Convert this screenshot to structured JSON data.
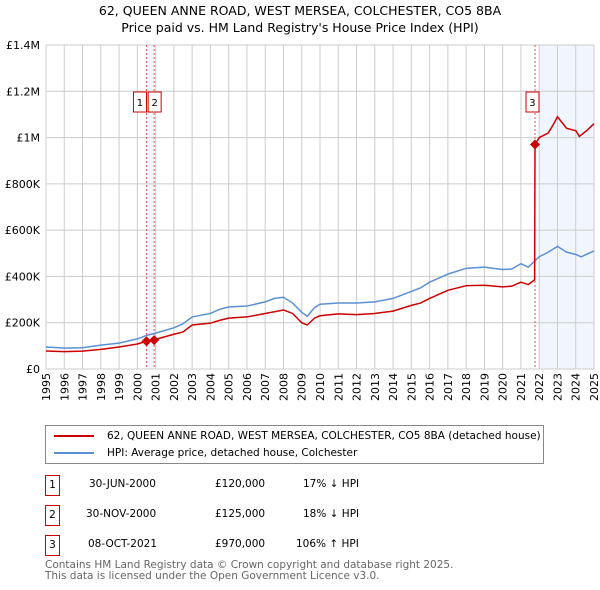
{
  "title": "62, QUEEN ANNE ROAD, WEST MERSEA, COLCHESTER, CO5 8BA",
  "subtitle": "Price paid vs. HM Land Registry's House Price Index (HPI)",
  "chart_data": {
    "type": "line",
    "xlim": [
      1995,
      2025
    ],
    "ylim": [
      0,
      1400000
    ],
    "y_ticks": [
      {
        "v": 0,
        "label": "£0"
      },
      {
        "v": 200000,
        "label": "£200K"
      },
      {
        "v": 400000,
        "label": "£400K"
      },
      {
        "v": 600000,
        "label": "£600K"
      },
      {
        "v": 800000,
        "label": "£800K"
      },
      {
        "v": 1000000,
        "label": "£1M"
      },
      {
        "v": 1200000,
        "label": "£1.2M"
      },
      {
        "v": 1400000,
        "label": "£1.4M"
      }
    ],
    "x_ticks": [
      "1995",
      "1996",
      "1997",
      "1998",
      "1999",
      "2000",
      "2001",
      "2002",
      "2003",
      "2004",
      "2005",
      "2006",
      "2007",
      "2008",
      "2009",
      "2010",
      "2011",
      "2012",
      "2013",
      "2014",
      "2015",
      "2016",
      "2017",
      "2018",
      "2019",
      "2020",
      "2021",
      "2022",
      "2023",
      "2024",
      "2025"
    ],
    "grid": true,
    "shaded_ranges": [
      [
        2000.5,
        2000.92
      ],
      [
        2022,
        2025
      ]
    ],
    "series": [
      {
        "name": "62, QUEEN ANNE ROAD, WEST MERSEA, COLCHESTER, CO5 8BA (detached house)",
        "color": "#cc0000",
        "x": [
          1995,
          1996,
          1997,
          1998,
          1999,
          2000,
          2000.5,
          2000.92,
          2001,
          2002,
          2002.5,
          2003,
          2004,
          2004.5,
          2005,
          2006,
          2007,
          2008,
          2008.5,
          2009,
          2009.3,
          2009.7,
          2010,
          2011,
          2012,
          2013,
          2014,
          2015,
          2015.5,
          2016,
          2017,
          2018,
          2019,
          2020,
          2020.5,
          2021,
          2021.4,
          2021.75,
          2021.77,
          2022,
          2022.5,
          2022.8,
          2023,
          2023.5,
          2024,
          2024.2,
          2024.6,
          2025
        ],
        "y": [
          78000,
          75000,
          77000,
          85000,
          95000,
          108000,
          120000,
          125000,
          128000,
          150000,
          160000,
          190000,
          198000,
          210000,
          220000,
          225000,
          240000,
          255000,
          240000,
          200000,
          190000,
          220000,
          230000,
          238000,
          235000,
          240000,
          250000,
          275000,
          285000,
          305000,
          340000,
          360000,
          362000,
          355000,
          358000,
          375000,
          365000,
          385000,
          970000,
          1000000,
          1020000,
          1060000,
          1090000,
          1040000,
          1030000,
          1005000,
          1030000,
          1060000
        ]
      },
      {
        "name": "HPI: Average price, detached house, Colchester",
        "color": "#5b8fd4",
        "x": [
          1995,
          1996,
          1997,
          1998,
          1999,
          2000,
          2000.5,
          2001,
          2002,
          2002.5,
          2003,
          2004,
          2004.5,
          2005,
          2006,
          2007,
          2007.5,
          2008,
          2008.5,
          2009,
          2009.3,
          2009.7,
          2010,
          2011,
          2012,
          2013,
          2014,
          2015,
          2015.5,
          2016,
          2017,
          2018,
          2019,
          2019.5,
          2020,
          2020.5,
          2021,
          2021.4,
          2021.8,
          2022,
          2022.5,
          2023,
          2023.5,
          2024,
          2024.3,
          2025
        ],
        "y": [
          95000,
          90000,
          92000,
          103000,
          112000,
          130000,
          145000,
          155000,
          178000,
          195000,
          225000,
          240000,
          258000,
          268000,
          272000,
          290000,
          305000,
          310000,
          285000,
          245000,
          228000,
          265000,
          280000,
          285000,
          285000,
          290000,
          305000,
          335000,
          350000,
          375000,
          410000,
          435000,
          440000,
          435000,
          430000,
          432000,
          455000,
          440000,
          470000,
          485000,
          505000,
          530000,
          505000,
          495000,
          485000,
          510000
        ]
      }
    ],
    "sales": [
      {
        "id": "1",
        "x": 2000.5,
        "y": 120000,
        "date": "30-JUN-2000",
        "price": "£120,000",
        "hpi": "17% ↓ HPI"
      },
      {
        "id": "2",
        "x": 2000.92,
        "y": 125000,
        "date": "30-NOV-2000",
        "price": "£125,000",
        "hpi": "18% ↓ HPI"
      },
      {
        "id": "3",
        "x": 2021.77,
        "y": 970000,
        "date": "08-OCT-2021",
        "price": "£970,000",
        "hpi": "106% ↑ HPI"
      }
    ]
  },
  "footer": [
    "Contains HM Land Registry data © Crown copyright and database right 2025.",
    "This data is licensed under the Open Government Licence v3.0."
  ]
}
